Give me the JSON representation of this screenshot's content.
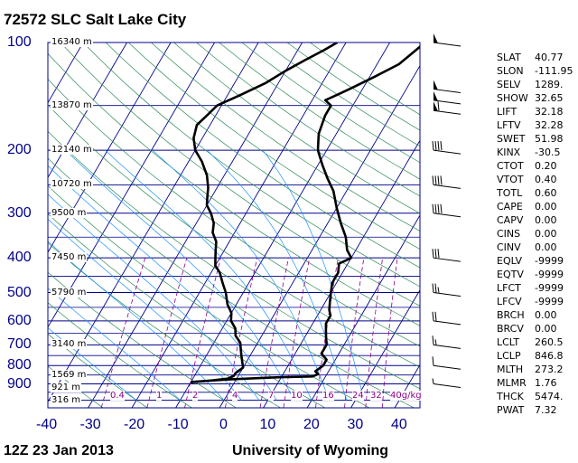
{
  "header": {
    "title": "72572 SLC Salt Lake City"
  },
  "footer": {
    "time": "12Z 23 Jan 2013",
    "source": "University of Wyoming"
  },
  "chart_data": {
    "type": "line",
    "title": "72572 SLC Salt Lake City",
    "x_axis_ticks": [
      -40,
      -30,
      -20,
      -10,
      0,
      10,
      20,
      30,
      40
    ],
    "y_axis_ticks": [
      100,
      200,
      300,
      400,
      500,
      600,
      700,
      800,
      900
    ],
    "xlim": [
      -40,
      45
    ],
    "ylim": [
      100,
      1050
    ],
    "y_scale": "log",
    "height_labels": [
      {
        "p": 100,
        "text": "16340 m"
      },
      {
        "p": 150,
        "text": "13870 m"
      },
      {
        "p": 200,
        "text": "12140 m"
      },
      {
        "p": 250,
        "text": "10720 m"
      },
      {
        "p": 300,
        "text": "9500 m"
      },
      {
        "p": 400,
        "text": "7450 m"
      },
      {
        "p": 500,
        "text": "5790 m"
      },
      {
        "p": 700,
        "text": "3140 m"
      },
      {
        "p": 850,
        "text": "1569 m"
      },
      {
        "p": 925,
        "text": "921 m"
      },
      {
        "p": 1000,
        "text": "316 m"
      }
    ],
    "mixing_ratio_labels": [
      "0.4",
      "1",
      "2",
      "4",
      "7",
      "10",
      "16",
      "24",
      "32",
      "40g/kg"
    ],
    "series": [
      {
        "id": "temperature",
        "points": [
          [
            -10,
            890
          ],
          [
            -6,
            882
          ],
          [
            -2,
            875
          ],
          [
            4,
            868
          ],
          [
            10,
            862
          ],
          [
            17,
            858
          ],
          [
            18,
            845
          ],
          [
            17,
            830
          ],
          [
            18,
            800
          ],
          [
            18,
            770
          ],
          [
            16,
            740
          ],
          [
            16,
            700
          ],
          [
            15,
            670
          ],
          [
            14,
            640
          ],
          [
            13,
            610
          ],
          [
            13,
            580
          ],
          [
            12,
            560
          ],
          [
            11,
            530
          ],
          [
            10,
            500
          ],
          [
            9,
            470
          ],
          [
            9,
            440
          ],
          [
            8,
            415
          ],
          [
            10,
            400
          ],
          [
            8,
            380
          ],
          [
            6,
            350
          ],
          [
            3,
            320
          ],
          [
            0,
            290
          ],
          [
            -3,
            260
          ],
          [
            -6,
            240
          ],
          [
            -9,
            220
          ],
          [
            -12,
            200
          ],
          [
            -14,
            180
          ],
          [
            -15,
            160
          ],
          [
            -15,
            150
          ],
          [
            -17,
            145
          ],
          [
            -15,
            140
          ],
          [
            -13,
            135
          ],
          [
            -9,
            125
          ],
          [
            -5,
            115
          ],
          [
            -3,
            105
          ],
          [
            -2,
            100
          ]
        ]
      },
      {
        "id": "dewpoint",
        "points": [
          [
            -10,
            890
          ],
          [
            -6,
            882
          ],
          [
            -2,
            870
          ],
          [
            -1,
            855
          ],
          [
            -1,
            840
          ],
          [
            0,
            810
          ],
          [
            -1,
            780
          ],
          [
            -2,
            750
          ],
          [
            -3,
            720
          ],
          [
            -4,
            690
          ],
          [
            -6,
            660
          ],
          [
            -7,
            630
          ],
          [
            -9,
            600
          ],
          [
            -10,
            570
          ],
          [
            -12,
            540
          ],
          [
            -14,
            500
          ],
          [
            -16,
            470
          ],
          [
            -18,
            440
          ],
          [
            -20,
            420
          ],
          [
            -21,
            400
          ],
          [
            -22,
            380
          ],
          [
            -23,
            360
          ],
          [
            -25,
            340
          ],
          [
            -26,
            320
          ],
          [
            -28,
            300
          ],
          [
            -30,
            285
          ],
          [
            -31,
            270
          ],
          [
            -32,
            255
          ],
          [
            -34,
            235
          ],
          [
            -37,
            215
          ],
          [
            -40,
            200
          ],
          [
            -42,
            185
          ],
          [
            -43,
            170
          ],
          [
            -42,
            160
          ],
          [
            -41,
            150
          ],
          [
            -37,
            140
          ],
          [
            -33,
            130
          ],
          [
            -30,
            120
          ],
          [
            -27,
            112
          ],
          [
            -24,
            105
          ],
          [
            -22,
            100
          ]
        ]
      }
    ],
    "wind_barbs": [
      {
        "p": 100,
        "speed": 50
      },
      {
        "p": 135,
        "speed": 50
      },
      {
        "p": 145,
        "speed": 50
      },
      {
        "p": 155,
        "speed": 60
      },
      {
        "p": 200,
        "speed": 40
      },
      {
        "p": 250,
        "speed": 40
      },
      {
        "p": 300,
        "speed": 40
      },
      {
        "p": 400,
        "speed": 30
      },
      {
        "p": 500,
        "speed": 25
      },
      {
        "p": 600,
        "speed": 20
      },
      {
        "p": 700,
        "speed": 15
      },
      {
        "p": 800,
        "speed": 10
      },
      {
        "p": 900,
        "speed": 5
      }
    ]
  },
  "indices": [
    {
      "key": "SLAT",
      "value": "40.77"
    },
    {
      "key": "SLON",
      "value": "-111.95"
    },
    {
      "key": "SELV",
      "value": "1289."
    },
    {
      "key": "SHOW",
      "value": "32.65"
    },
    {
      "key": "LIFT",
      "value": "32.18"
    },
    {
      "key": "LFTV",
      "value": "32.28"
    },
    {
      "key": "SWET",
      "value": "51.98"
    },
    {
      "key": "KINX",
      "value": "-30.5"
    },
    {
      "key": "CTOT",
      "value": "0.20"
    },
    {
      "key": "VTOT",
      "value": "0.40"
    },
    {
      "key": "TOTL",
      "value": "0.60"
    },
    {
      "key": "CAPE",
      "value": "0.00"
    },
    {
      "key": "CAPV",
      "value": "0.00"
    },
    {
      "key": "CINS",
      "value": "0.00"
    },
    {
      "key": "CINV",
      "value": "0.00"
    },
    {
      "key": "EQLV",
      "value": "-9999"
    },
    {
      "key": "EQTV",
      "value": "-9999"
    },
    {
      "key": "LFCT",
      "value": "-9999"
    },
    {
      "key": "LFCV",
      "value": "-9999"
    },
    {
      "key": "BRCH",
      "value": "0.00"
    },
    {
      "key": "BRCV",
      "value": "0.00"
    },
    {
      "key": "LCLT",
      "value": "260.5"
    },
    {
      "key": "LCLP",
      "value": "846.8"
    },
    {
      "key": "MLTH",
      "value": "273.2"
    },
    {
      "key": "MLMR",
      "value": "1.76"
    },
    {
      "key": "THCK",
      "value": "5474."
    },
    {
      "key": "PWAT",
      "value": "7.32"
    }
  ],
  "colors": {
    "isobar": "#00008b",
    "isotherm": "#00008b",
    "dry_adiabat": "#2e8b57",
    "moist_adiabat": "#1e90ff",
    "mixing_ratio": "#8b008b",
    "profile": "#000000"
  }
}
